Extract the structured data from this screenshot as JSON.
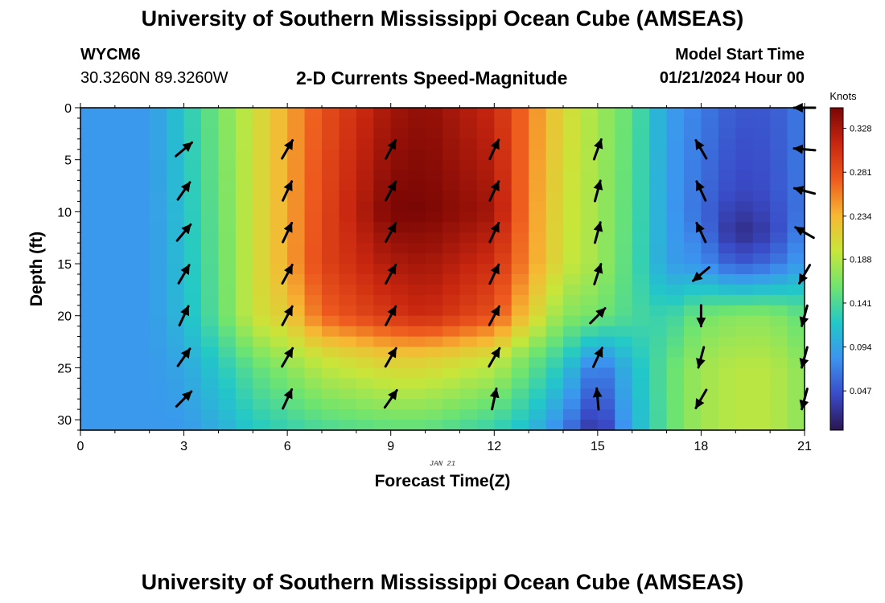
{
  "header": {
    "title": "University of Southern Mississippi Ocean Cube (AMSEAS)",
    "station": "WYCM6",
    "coordinates": "30.3260N  89.3260W",
    "subtitle": "2-D Currents Speed-Magnitude",
    "model_start_label": "Model Start Time",
    "model_start_value": "01/21/2024 Hour 00"
  },
  "footer": {
    "title": "University of Southern Mississippi Ocean Cube (AMSEAS)"
  },
  "chart_data": {
    "type": "heatmap",
    "xlabel": "Forecast Time(Z)",
    "ylabel": "Depth (ft)",
    "x_sublabel": "JAN 21",
    "xlim": [
      0,
      21
    ],
    "ylim": [
      0,
      31
    ],
    "y_inverted": true,
    "xticks": [
      0,
      3,
      6,
      9,
      12,
      15,
      18,
      21
    ],
    "yticks": [
      0,
      5,
      10,
      15,
      20,
      25,
      30
    ],
    "colorbar": {
      "label": "Knots",
      "ticks": [
        0.047,
        0.094,
        0.141,
        0.188,
        0.234,
        0.281,
        0.328
      ],
      "range": [
        0.005,
        0.35
      ],
      "colors": [
        "#2a1550",
        "#3a4bc8",
        "#3c94f0",
        "#22c8c8",
        "#6fe46f",
        "#c8e63a",
        "#f7b733",
        "#ee5a1e",
        "#c8260f",
        "#7a0604"
      ]
    },
    "speed_profiles": [
      {
        "hour": 0,
        "depths": [
          0,
          31
        ],
        "speeds": [
          0.085,
          0.085
        ]
      },
      {
        "hour": 2,
        "depths": [
          0,
          31
        ],
        "speeds": [
          0.085,
          0.085
        ]
      },
      {
        "hour": 3,
        "depths": [
          0,
          20,
          25,
          31
        ],
        "speeds": [
          0.12,
          0.11,
          0.095,
          0.085
        ]
      },
      {
        "hour": 4,
        "depths": [
          0,
          20,
          25,
          31
        ],
        "speeds": [
          0.16,
          0.15,
          0.12,
          0.1
        ]
      },
      {
        "hour": 5,
        "depths": [
          0,
          20,
          25,
          31
        ],
        "speeds": [
          0.2,
          0.2,
          0.15,
          0.12
        ]
      },
      {
        "hour": 6,
        "depths": [
          0,
          15,
          20,
          25,
          31
        ],
        "speeds": [
          0.24,
          0.24,
          0.22,
          0.17,
          0.13
        ]
      },
      {
        "hour": 7,
        "depths": [
          0,
          15,
          20,
          24,
          31
        ],
        "speeds": [
          0.28,
          0.29,
          0.27,
          0.2,
          0.14
        ]
      },
      {
        "hour": 9,
        "depths": [
          0,
          10,
          20,
          24,
          31
        ],
        "speeds": [
          0.33,
          0.35,
          0.3,
          0.22,
          0.15
        ]
      },
      {
        "hour": 10,
        "depths": [
          0,
          10,
          20,
          24,
          31
        ],
        "speeds": [
          0.34,
          0.35,
          0.31,
          0.22,
          0.15
        ]
      },
      {
        "hour": 12,
        "depths": [
          0,
          10,
          20,
          24,
          31
        ],
        "speeds": [
          0.31,
          0.33,
          0.28,
          0.2,
          0.13
        ]
      },
      {
        "hour": 13,
        "depths": [
          0,
          15,
          20,
          24,
          31
        ],
        "speeds": [
          0.26,
          0.25,
          0.22,
          0.16,
          0.11
        ]
      },
      {
        "hour": 14,
        "depths": [
          0,
          15,
          20,
          25,
          31
        ],
        "speeds": [
          0.21,
          0.2,
          0.17,
          0.12,
          0.07
        ]
      },
      {
        "hour": 15,
        "depths": [
          0,
          15,
          20,
          25,
          31
        ],
        "speeds": [
          0.18,
          0.18,
          0.16,
          0.06,
          0.02
        ]
      },
      {
        "hour": 16,
        "depths": [
          0,
          20,
          25,
          31
        ],
        "speeds": [
          0.15,
          0.14,
          0.11,
          0.1
        ]
      },
      {
        "hour": 17,
        "depths": [
          0,
          15,
          20,
          25,
          31
        ],
        "speeds": [
          0.09,
          0.09,
          0.13,
          0.15,
          0.15
        ]
      },
      {
        "hour": 18,
        "depths": [
          0,
          10,
          15,
          20,
          25,
          31
        ],
        "speeds": [
          0.07,
          0.06,
          0.08,
          0.16,
          0.18,
          0.18
        ]
      },
      {
        "hour": 19,
        "depths": [
          0,
          8,
          12,
          15,
          20,
          25,
          31
        ],
        "speeds": [
          0.05,
          0.04,
          0.02,
          0.05,
          0.17,
          0.19,
          0.19
        ]
      },
      {
        "hour": 20,
        "depths": [
          0,
          8,
          12,
          15,
          20,
          25,
          31
        ],
        "speeds": [
          0.05,
          0.045,
          0.035,
          0.06,
          0.17,
          0.19,
          0.19
        ]
      },
      {
        "hour": 21,
        "depths": [
          0,
          10,
          15,
          20,
          25,
          31
        ],
        "speeds": [
          0.07,
          0.07,
          0.09,
          0.15,
          0.17,
          0.17
        ]
      }
    ],
    "vectors": [
      {
        "hour": 3,
        "depths": [
          4,
          8,
          12,
          16,
          20,
          24,
          28
        ],
        "angle_deg": [
          40,
          55,
          50,
          60,
          65,
          55,
          45
        ]
      },
      {
        "hour": 6,
        "depths": [
          4,
          8,
          12,
          16,
          20,
          24,
          28
        ],
        "angle_deg": [
          60,
          65,
          65,
          62,
          62,
          60,
          65
        ]
      },
      {
        "hour": 9,
        "depths": [
          4,
          8,
          12,
          16,
          20,
          24,
          28
        ],
        "angle_deg": [
          62,
          62,
          62,
          62,
          62,
          60,
          55
        ]
      },
      {
        "hour": 12,
        "depths": [
          4,
          8,
          12,
          16,
          20,
          24,
          28
        ],
        "angle_deg": [
          65,
          65,
          65,
          65,
          62,
          60,
          78
        ]
      },
      {
        "hour": 15,
        "depths": [
          4,
          8,
          12,
          16,
          20,
          24,
          28
        ],
        "angle_deg": [
          70,
          75,
          75,
          72,
          45,
          65,
          95
        ]
      },
      {
        "hour": 18,
        "depths": [
          4,
          8,
          12,
          16,
          20,
          24,
          28
        ],
        "angle_deg": [
          120,
          115,
          115,
          220,
          270,
          255,
          240
        ]
      },
      {
        "hour": 21,
        "depths": [
          0,
          4,
          8,
          12,
          16,
          20,
          24,
          28
        ],
        "angle_deg": [
          180,
          175,
          165,
          150,
          240,
          255,
          255,
          255
        ]
      }
    ]
  }
}
